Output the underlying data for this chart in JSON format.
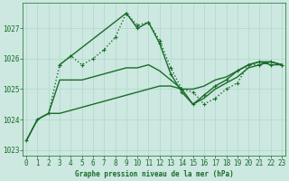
{
  "bg_color": "#cce8e0",
  "grid_color": "#b0d8cc",
  "line_color": "#1a6b2a",
  "title": "Graphe pression niveau de la mer (hPa)",
  "ylim": [
    1022.8,
    1027.85
  ],
  "xlim": [
    -0.3,
    23.3
  ],
  "yticks": [
    1023,
    1024,
    1025,
    1026,
    1027
  ],
  "xticks": [
    0,
    1,
    2,
    3,
    4,
    5,
    6,
    7,
    8,
    9,
    10,
    11,
    12,
    13,
    14,
    15,
    16,
    17,
    18,
    19,
    20,
    21,
    22,
    23
  ],
  "series": [
    {
      "x": [
        0,
        1,
        2,
        3,
        4,
        5,
        6,
        7,
        8,
        9,
        10,
        11,
        12,
        13,
        14,
        15,
        16,
        17,
        18,
        19,
        20,
        21,
        22,
        23
      ],
      "y": [
        1023.3,
        1024.0,
        1024.2,
        1025.8,
        1026.1,
        1025.8,
        1026.0,
        1026.3,
        1026.7,
        1027.5,
        1027.1,
        1027.2,
        1026.6,
        1025.7,
        1025.0,
        1024.9,
        1024.5,
        1024.7,
        1025.0,
        1025.2,
        1025.8,
        1025.8,
        1025.9,
        1025.8
      ],
      "linestyle": "dotted",
      "linewidth": 1.0,
      "marker": true
    },
    {
      "x": [
        0,
        1,
        2,
        3,
        4,
        5,
        6,
        7,
        8,
        9,
        10,
        11,
        12,
        13,
        14,
        15,
        16,
        17,
        18,
        19,
        20,
        21,
        22,
        23
      ],
      "y": [
        1023.3,
        1024.0,
        1024.2,
        1025.3,
        1025.3,
        1025.3,
        1025.4,
        1025.5,
        1025.6,
        1025.7,
        1025.7,
        1025.8,
        1025.6,
        1025.3,
        1025.0,
        1025.0,
        1025.1,
        1025.3,
        1025.4,
        1025.6,
        1025.8,
        1025.9,
        1025.9,
        1025.8
      ],
      "linestyle": "solid",
      "linewidth": 1.0,
      "marker": false
    },
    {
      "x": [
        0,
        1,
        2,
        3,
        4,
        5,
        6,
        7,
        8,
        9,
        10,
        11,
        12,
        13,
        14,
        15,
        16,
        17,
        18,
        19,
        20,
        21,
        22,
        23
      ],
      "y": [
        1023.3,
        1024.0,
        1024.2,
        1024.2,
        1024.3,
        1024.4,
        1024.5,
        1024.6,
        1024.7,
        1024.8,
        1024.9,
        1025.0,
        1025.1,
        1025.1,
        1025.0,
        1024.5,
        1024.7,
        1025.0,
        1025.2,
        1025.4,
        1025.7,
        1025.8,
        1025.9,
        1025.8
      ],
      "linestyle": "solid",
      "linewidth": 1.0,
      "marker": false
    },
    {
      "x": [
        3,
        9,
        10,
        11,
        12,
        13,
        14,
        15,
        16,
        17,
        18,
        19,
        20,
        21,
        22,
        23
      ],
      "y": [
        1025.8,
        1027.5,
        1027.0,
        1027.2,
        1026.5,
        1025.5,
        1024.9,
        1024.5,
        1024.8,
        1025.1,
        1025.3,
        1025.6,
        1025.8,
        1025.9,
        1025.8,
        1025.8
      ],
      "linestyle": "solid",
      "linewidth": 1.0,
      "marker": true
    }
  ]
}
